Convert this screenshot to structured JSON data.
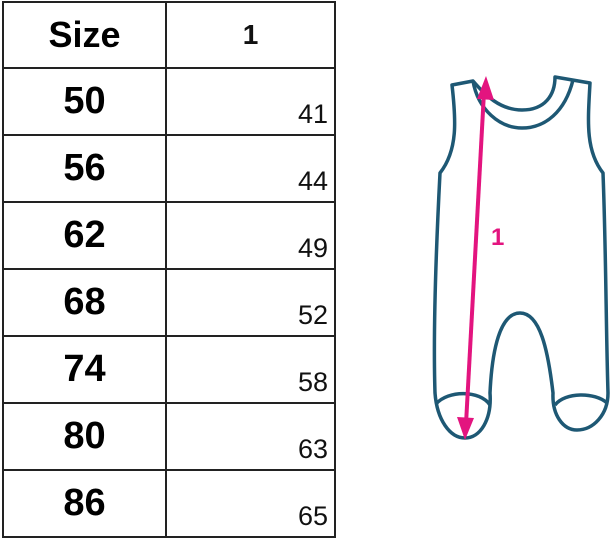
{
  "table": {
    "headers": [
      "Size",
      "1"
    ],
    "rows": [
      {
        "size": "50",
        "value": "41"
      },
      {
        "size": "56",
        "value": "44"
      },
      {
        "size": "62",
        "value": "49"
      },
      {
        "size": "68",
        "value": "52"
      },
      {
        "size": "74",
        "value": "58"
      },
      {
        "size": "80",
        "value": "63"
      },
      {
        "size": "86",
        "value": "65"
      }
    ]
  },
  "diagram": {
    "measure_label": "1",
    "outline_color": "#1e5874",
    "arrow_color": "#e3147f"
  }
}
